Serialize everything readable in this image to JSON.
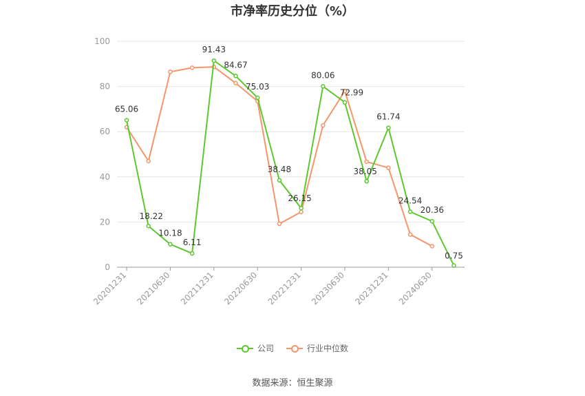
{
  "chart_data": {
    "type": "line",
    "title": "市净率历史分位（%）",
    "x": [
      "20201231",
      "20210331",
      "20210630",
      "20210930",
      "20211231",
      "20220331",
      "20220630",
      "20220930",
      "20221231",
      "20230331",
      "20230630",
      "20230930",
      "20231231",
      "20240331",
      "20240630",
      "20240930"
    ],
    "x_tick_labels": [
      "20201231",
      "20210630",
      "20211231",
      "20220630",
      "20221231",
      "20230630",
      "20231231",
      "20240630"
    ],
    "yticks": [
      0,
      20,
      40,
      60,
      80,
      100
    ],
    "ylim": [
      0,
      100
    ],
    "grid": true,
    "legend_position": "bottom",
    "series": [
      {
        "name": "公司",
        "color": "#5cc72e",
        "values": [
          65.06,
          18.22,
          10.18,
          6.11,
          91.43,
          84.67,
          75.03,
          38.48,
          26.15,
          80.06,
          72.99,
          38.05,
          61.74,
          24.54,
          20.36,
          0.75
        ],
        "labels": [
          "65.06",
          "18.22",
          "10.18",
          "6.11",
          "91.43",
          "84.67",
          "75.03",
          "38.48",
          "26.15",
          "80.06",
          "72.99",
          "38.05",
          "61.74",
          "24.54",
          "20.36",
          "0.75"
        ]
      },
      {
        "name": "行业中位数",
        "color": "#f4956a",
        "values": [
          62.0,
          47.0,
          86.5,
          88.3,
          88.7,
          81.5,
          73.5,
          19.2,
          24.5,
          62.8,
          78.0,
          46.7,
          44.0,
          14.5,
          9.3,
          null
        ]
      }
    ]
  },
  "source_note": "数据来源：恒生聚源"
}
